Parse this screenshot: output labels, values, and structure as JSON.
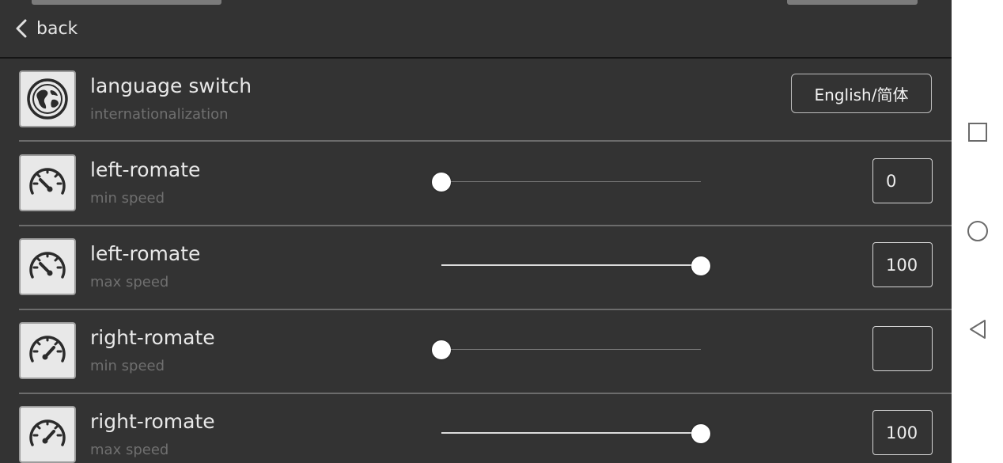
{
  "header": {
    "back_label": "back",
    "back_icon": "chevron-left-icon"
  },
  "settings": [
    {
      "type": "language",
      "icon": "globe-icon",
      "title": "language switch",
      "subtitle": "internationalization",
      "button_label": "English/简体"
    },
    {
      "type": "slider",
      "icon": "speedometer-low-icon",
      "title": "left-romate",
      "subtitle": "min speed",
      "value": "0",
      "level": 0
    },
    {
      "type": "slider",
      "icon": "speedometer-low-icon",
      "title": "left-romate",
      "subtitle": "max speed",
      "value": "100",
      "level": 1
    },
    {
      "type": "slider",
      "icon": "speedometer-high-icon",
      "title": "right-romate",
      "subtitle": "min speed",
      "value": "",
      "level": 0
    },
    {
      "type": "slider",
      "icon": "speedometer-high-icon",
      "title": "right-romate",
      "subtitle": "max speed",
      "value": "100",
      "level": 1
    }
  ],
  "navbar": {
    "buttons": [
      "recents-square-icon",
      "home-circle-icon",
      "back-triangle-icon"
    ]
  },
  "colors": {
    "background": "#333333",
    "divider": "#6c6c6c",
    "text": "#e8e8e8",
    "subtext": "#6f6f6f",
    "navbar": "#ffffff"
  }
}
